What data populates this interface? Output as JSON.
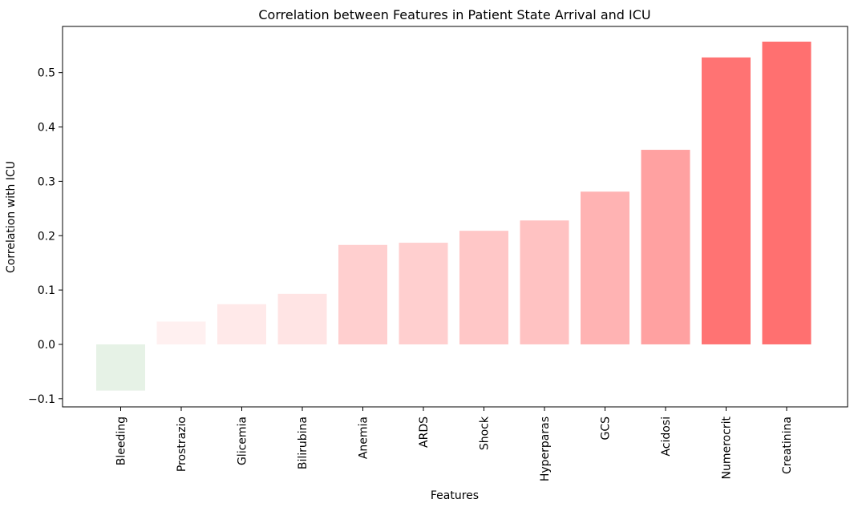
{
  "chart_data": {
    "type": "bar",
    "title": "Correlation between Features in Patient State Arrival and ICU",
    "xlabel": "Features",
    "ylabel": "Correlation with ICU",
    "categories": [
      "Bleeding",
      "Prostrazio",
      "Glicemia",
      "Bilirubina",
      "Anemia",
      "ARDS",
      "Shock",
      "Hyperparas",
      "GCS",
      "Acidosi",
      "Numerocrit",
      "Creatinina"
    ],
    "values": [
      -0.085,
      0.042,
      0.074,
      0.093,
      0.183,
      0.187,
      0.209,
      0.228,
      0.281,
      0.358,
      0.528,
      0.557
    ],
    "bar_colors": [
      "#e6f2e6",
      "#fff0f0",
      "#ffe9e9",
      "#ffe4e4",
      "#ffcfcf",
      "#ffcfcf",
      "#ffc7c7",
      "#ffc2c2",
      "#ffb3b3",
      "#ffa1a1",
      "#ff7373",
      "#ff7070"
    ],
    "ylim": [
      -0.115,
      0.585
    ],
    "yticks": [
      -0.1,
      0.0,
      0.1,
      0.2,
      0.3,
      0.4,
      0.5
    ],
    "ytick_labels": [
      "−0.1",
      "0.0",
      "0.1",
      "0.2",
      "0.3",
      "0.4",
      "0.5"
    ],
    "grid": false,
    "legend": "none"
  }
}
